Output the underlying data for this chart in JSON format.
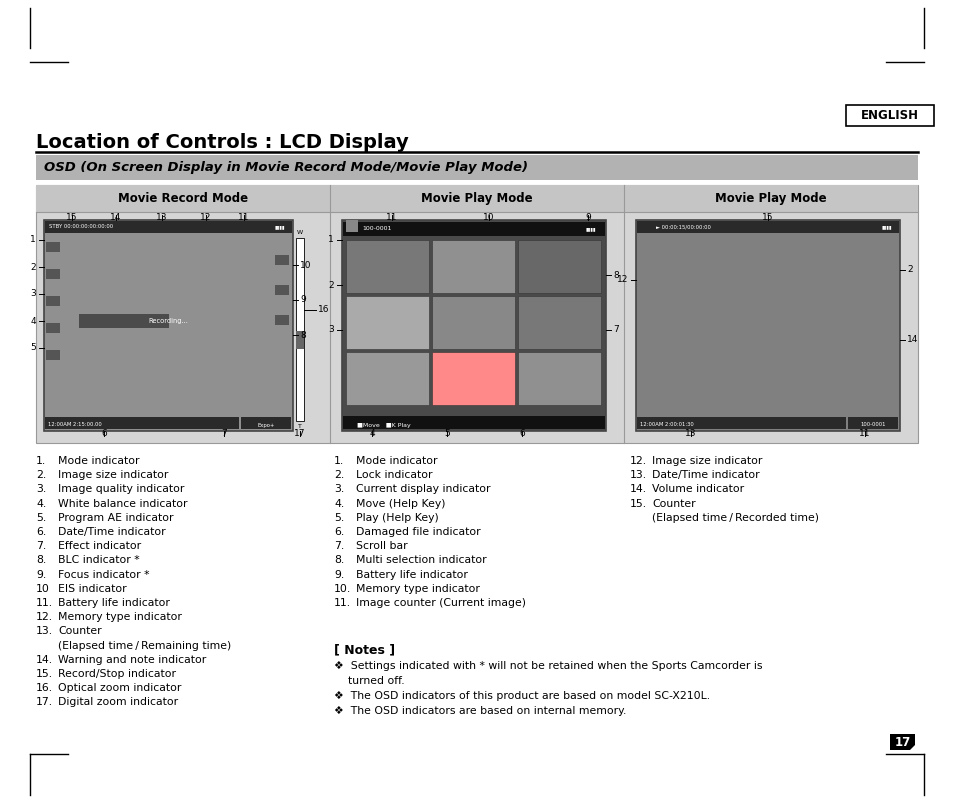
{
  "bg_color": "#ffffff",
  "english_label": "ENGLISH",
  "title": "Location of Controls : LCD Display",
  "subtitle": "OSD (On Screen Display in Movie Record Mode/Movie Play Mode)",
  "col_headers": [
    "Movie Record Mode",
    "Movie Play Mode",
    "Movie Play Mode"
  ],
  "left_list": [
    [
      "1.",
      "Mode indicator"
    ],
    [
      "2.",
      "Image size indicator"
    ],
    [
      "3.",
      "Image quality indicator"
    ],
    [
      "4.",
      "White balance indicator"
    ],
    [
      "5.",
      "Program AE indicator"
    ],
    [
      "6.",
      "Date/Time indicator"
    ],
    [
      "7.",
      "Effect indicator"
    ],
    [
      "8.",
      "BLC indicator *"
    ],
    [
      "9.",
      "Focus indicator *"
    ],
    [
      "10",
      "EIS indicator"
    ],
    [
      "11.",
      "Battery life indicator"
    ],
    [
      "12.",
      "Memory type indicator"
    ],
    [
      "13.",
      "Counter"
    ],
    [
      "",
      "(Elapsed time / Remaining time)"
    ],
    [
      "14.",
      "Warning and note indicator"
    ],
    [
      "15.",
      "Record/Stop indicator"
    ],
    [
      "16.",
      "Optical zoom indicator"
    ],
    [
      "17.",
      "Digital zoom indicator"
    ]
  ],
  "mid_list": [
    [
      "1.",
      "Mode indicator"
    ],
    [
      "2.",
      "Lock indicator"
    ],
    [
      "3.",
      "Current display indicator"
    ],
    [
      "4.",
      "Move (Help Key)"
    ],
    [
      "5.",
      "Play (Help Key)"
    ],
    [
      "6.",
      "Damaged file indicator"
    ],
    [
      "7.",
      "Scroll bar"
    ],
    [
      "8.",
      "Multi selection indicator"
    ],
    [
      "9.",
      "Battery life indicator"
    ],
    [
      "10.",
      "Memory type indicator"
    ],
    [
      "11.",
      "Image counter (Current image)"
    ]
  ],
  "right_list": [
    [
      "12.",
      "Image size indicator"
    ],
    [
      "13.",
      "Date/Time indicator"
    ],
    [
      "14.",
      "Volume indicator"
    ],
    [
      "15.",
      "Counter"
    ],
    [
      "",
      "(Elapsed time / Recorded time)"
    ]
  ],
  "notes_title": "[ Notes ]",
  "notes": [
    "❖  Settings indicated with * will not be retained when the Sports Camcorder is",
    "    turned off.",
    "❖  The OSD indicators of this product are based on model SC-X210L.",
    "❖  The OSD indicators are based on internal memory."
  ],
  "page_num": "17"
}
